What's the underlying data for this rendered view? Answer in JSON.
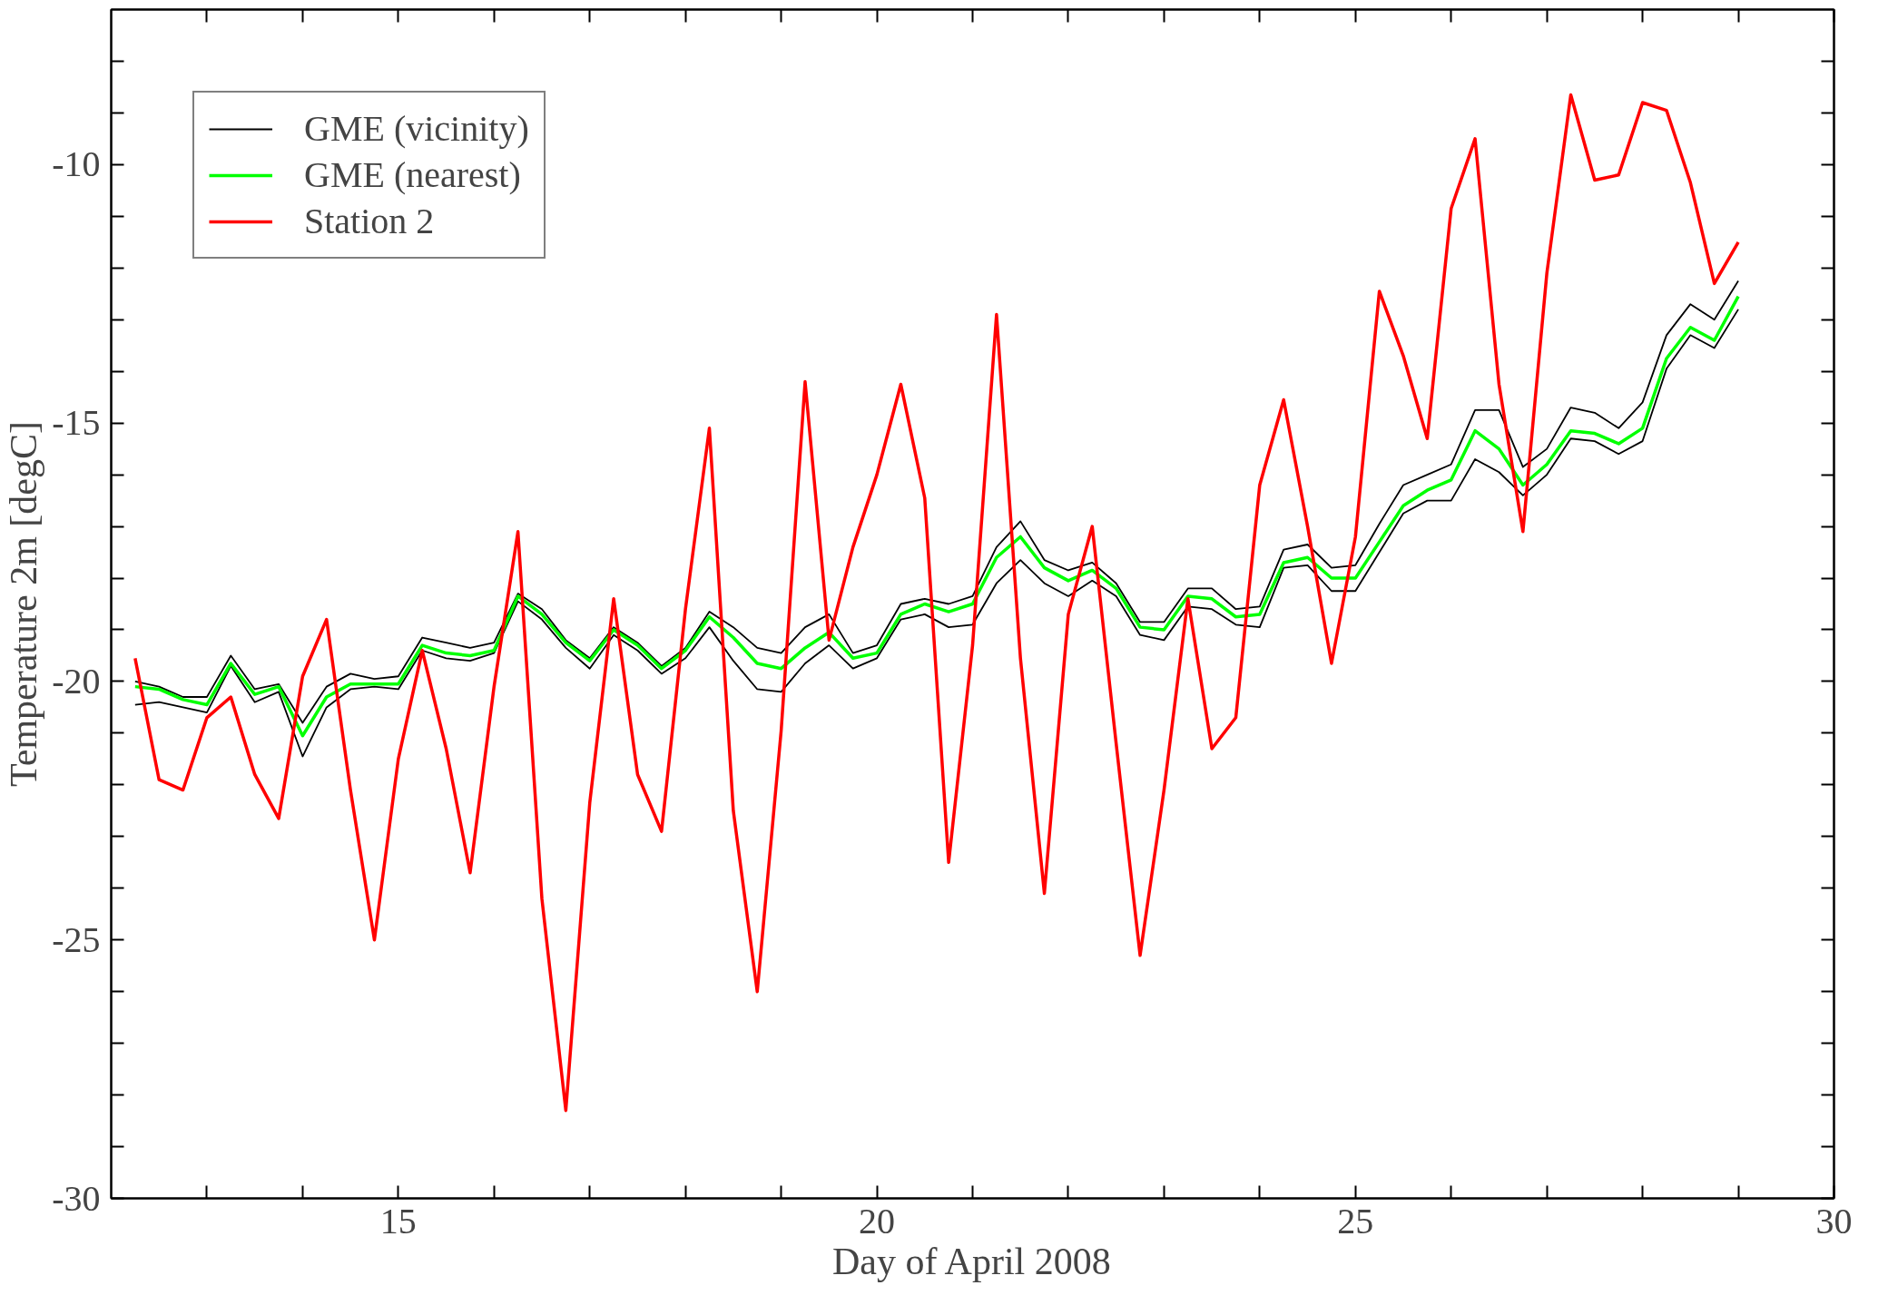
{
  "chart_data": {
    "type": "line",
    "xlabel": "Day of April 2008",
    "ylabel": "Temperature 2m [degC]",
    "x": [
      12.25,
      12.5,
      12.75,
      13,
      13.25,
      13.5,
      13.75,
      14,
      14.25,
      14.5,
      14.75,
      15,
      15.25,
      15.5,
      15.75,
      16,
      16.25,
      16.5,
      16.75,
      17,
      17.25,
      17.5,
      17.75,
      18,
      18.25,
      18.5,
      18.75,
      19,
      19.25,
      19.5,
      19.75,
      20,
      20.25,
      20.5,
      20.75,
      21,
      21.25,
      21.5,
      21.75,
      22,
      22.25,
      22.5,
      22.75,
      23,
      23.25,
      23.5,
      23.75,
      24,
      24.25,
      24.5,
      24.75,
      25,
      25.25,
      25.5,
      25.75,
      26,
      26.25,
      26.5,
      26.75,
      27,
      27.25,
      27.5,
      27.75,
      28,
      28.25,
      28.5,
      28.75,
      29
    ],
    "series": [
      {
        "name": "GME (vicinity)",
        "color": "#000000",
        "values": [
          -20.0,
          -20.1,
          -20.3,
          -20.3,
          -19.5,
          -20.15,
          -20.05,
          -20.8,
          -20.1,
          -19.85,
          -19.95,
          -19.9,
          -19.15,
          -19.25,
          -19.35,
          -19.25,
          -18.3,
          -18.6,
          -19.2,
          -19.55,
          -18.95,
          -19.25,
          -19.7,
          -19.35,
          -18.65,
          -18.95,
          -19.35,
          -19.45,
          -18.95,
          -18.7,
          -19.45,
          -19.3,
          -18.5,
          -18.4,
          -18.5,
          -18.35,
          -17.4,
          -16.9,
          -17.65,
          -17.85,
          -17.7,
          -18.1,
          -18.85,
          -18.85,
          -18.2,
          -18.2,
          -18.6,
          -18.55,
          -17.45,
          -17.35,
          -17.8,
          -17.75,
          -16.95,
          -16.2,
          -16.0,
          -15.8,
          -14.75,
          -14.75,
          -15.85,
          -15.5,
          -14.7,
          -14.8,
          -15.1,
          -14.6,
          -13.3,
          -12.7,
          -13.0,
          -12.25
        ]
      },
      {
        "color": "#000000",
        "values": [
          -20.45,
          -20.4,
          -20.5,
          -20.6,
          -19.7,
          -20.4,
          -20.2,
          -21.45,
          -20.5,
          -20.15,
          -20.1,
          -20.15,
          -19.4,
          -19.55,
          -19.6,
          -19.45,
          -18.45,
          -18.8,
          -19.35,
          -19.75,
          -19.1,
          -19.4,
          -19.85,
          -19.55,
          -18.95,
          -19.6,
          -20.15,
          -20.2,
          -19.65,
          -19.3,
          -19.75,
          -19.55,
          -18.8,
          -18.7,
          -18.95,
          -18.9,
          -18.1,
          -17.65,
          -18.1,
          -18.35,
          -18.05,
          -18.35,
          -19.1,
          -19.2,
          -18.55,
          -18.6,
          -18.9,
          -18.95,
          -17.8,
          -17.75,
          -18.25,
          -18.25,
          -17.5,
          -16.75,
          -16.5,
          -16.5,
          -15.7,
          -15.95,
          -16.4,
          -16.0,
          -15.3,
          -15.35,
          -15.6,
          -15.35,
          -13.95,
          -13.3,
          -13.55,
          -12.8
        ]
      },
      {
        "name": "GME (nearest)",
        "color": "#00ff00",
        "values": [
          -20.1,
          -20.15,
          -20.35,
          -20.45,
          -19.65,
          -20.25,
          -20.1,
          -21.05,
          -20.3,
          -20.05,
          -20.05,
          -20.05,
          -19.3,
          -19.45,
          -19.5,
          -19.4,
          -18.35,
          -18.7,
          -19.25,
          -19.6,
          -19.0,
          -19.3,
          -19.75,
          -19.4,
          -18.75,
          -19.15,
          -19.65,
          -19.75,
          -19.35,
          -19.05,
          -19.55,
          -19.45,
          -18.7,
          -18.5,
          -18.65,
          -18.5,
          -17.6,
          -17.2,
          -17.8,
          -18.05,
          -17.85,
          -18.2,
          -18.95,
          -19.0,
          -18.35,
          -18.4,
          -18.75,
          -18.7,
          -17.7,
          -17.6,
          -18.0,
          -18.0,
          -17.3,
          -16.6,
          -16.3,
          -16.1,
          -15.15,
          -15.5,
          -16.2,
          -15.8,
          -15.15,
          -15.2,
          -15.4,
          -15.1,
          -13.75,
          -13.15,
          -13.4,
          -12.55
        ]
      },
      {
        "name": "Station 2",
        "color": "#ff0000",
        "values": [
          -19.55,
          -21.9,
          -22.1,
          -20.7,
          -20.3,
          -21.8,
          -22.65,
          -19.9,
          -18.8,
          -22.1,
          -25.0,
          -21.5,
          -19.4,
          -21.3,
          -23.7,
          -20.1,
          -17.1,
          -24.2,
          -28.3,
          -22.35,
          -18.4,
          -21.8,
          -22.9,
          -18.6,
          -15.1,
          -22.5,
          -26.0,
          -20.95,
          -14.2,
          -19.2,
          -17.4,
          -16.0,
          -14.25,
          -16.45,
          -23.5,
          -19.3,
          -12.9,
          -19.55,
          -24.1,
          -18.7,
          -17.0,
          -21.2,
          -25.3,
          -22.1,
          -18.4,
          -21.3,
          -20.7,
          -16.2,
          -14.55,
          -17.0,
          -19.65,
          -17.2,
          -12.45,
          -13.7,
          -15.3,
          -10.85,
          -9.5,
          -14.25,
          -17.1,
          -12.1,
          -8.65,
          -10.3,
          -10.2,
          -8.8,
          -8.95,
          -10.35,
          -12.3,
          -11.5
        ]
      }
    ],
    "xlim": [
      12,
      30
    ],
    "xticks": [
      {
        "value": 13,
        "label": null
      },
      {
        "value": 14,
        "label": null
      },
      15,
      {
        "value": 16,
        "label": null
      },
      {
        "value": 17,
        "label": null
      },
      {
        "value": 18,
        "label": null
      },
      {
        "value": 19,
        "label": null
      },
      20,
      {
        "value": 21,
        "label": null
      },
      {
        "value": 22,
        "label": null
      },
      {
        "value": 23,
        "label": null
      },
      {
        "value": 24,
        "label": null
      },
      25,
      {
        "value": 26,
        "label": null
      },
      {
        "value": 27,
        "label": null
      },
      {
        "value": 28,
        "label": null
      },
      {
        "value": 29,
        "label": null
      },
      30
    ],
    "ylim": [
      -30,
      -7
    ],
    "yticks": [
      -30,
      {
        "value": -29,
        "label": null
      },
      {
        "value": -28,
        "label": null
      },
      {
        "value": -27,
        "label": null
      },
      {
        "value": -26,
        "label": null
      },
      -25,
      {
        "value": -24,
        "label": null
      },
      {
        "value": -23,
        "label": null
      },
      {
        "value": -22,
        "label": null
      },
      {
        "value": -21,
        "label": null
      },
      -20,
      {
        "value": -19,
        "label": null
      },
      {
        "value": -18,
        "label": null
      },
      {
        "value": -17,
        "label": null
      },
      {
        "value": -16,
        "label": null
      },
      -15,
      {
        "value": -14,
        "label": null
      },
      {
        "value": -13,
        "label": null
      },
      {
        "value": -12,
        "label": null
      },
      {
        "value": -11,
        "label": null
      },
      -10,
      {
        "value": -9,
        "label": null
      },
      {
        "value": -8,
        "label": null
      }
    ],
    "legend": "top left",
    "grid": false,
    "marker": "none",
    "line_style": "solid"
  }
}
